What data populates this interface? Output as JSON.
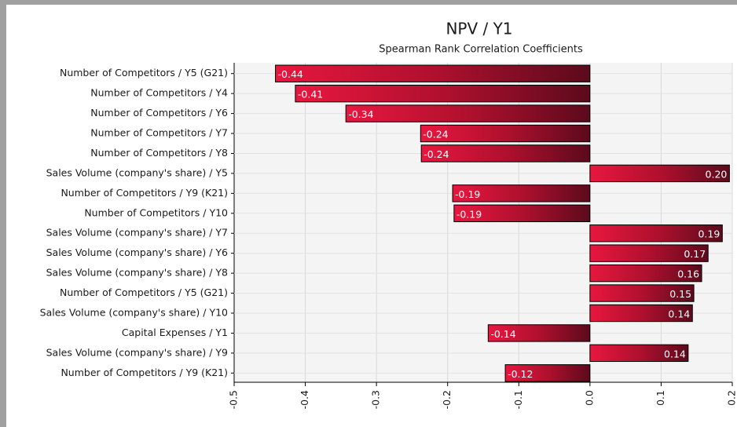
{
  "chart_data": {
    "type": "bar",
    "orientation": "horizontal",
    "title": "NPV / Y1",
    "subtitle": "Spearman Rank Correlation Coefficients",
    "categories": [
      "Number of Competitors / Y5 (G21)",
      "Number of Competitors / Y4",
      "Number of Competitors / Y6",
      "Number of Competitors / Y7",
      "Number of Competitors / Y8",
      "Sales Volume (company's share) / Y5",
      "Number of Competitors / Y9 (K21)",
      "Number of Competitors / Y10",
      "Sales Volume (company's share) / Y7",
      "Sales Volume (company's share) / Y6",
      "Sales Volume (company's share) / Y8",
      "Number of Competitors / Y5 (G21)",
      "Sales Volume (company's share) / Y10",
      "Capital Expenses / Y1",
      "Sales Volume (company's share) / Y9",
      "Number of Competitors / Y9 (K21)"
    ],
    "values": [
      -0.442,
      -0.414,
      -0.343,
      -0.238,
      -0.237,
      0.196,
      -0.193,
      -0.191,
      0.186,
      0.166,
      0.157,
      0.146,
      0.144,
      -0.143,
      0.138,
      -0.119
    ],
    "value_labels": [
      "-0.44",
      "-0.41",
      "-0.34",
      "-0.24",
      "-0.24",
      "0.20",
      "-0.19",
      "-0.19",
      "0.19",
      "0.17",
      "0.16",
      "0.15",
      "0.14",
      "-0.14",
      "0.14",
      "-0.12"
    ],
    "color": "#dc143c",
    "xlim": [
      -0.5,
      0.2
    ],
    "xticks": [
      -0.5,
      -0.4,
      -0.3,
      -0.2,
      -0.1,
      {
        "value": 0,
        "label": "0.0"
      },
      0.1,
      0.2
    ],
    "grid": true
  }
}
